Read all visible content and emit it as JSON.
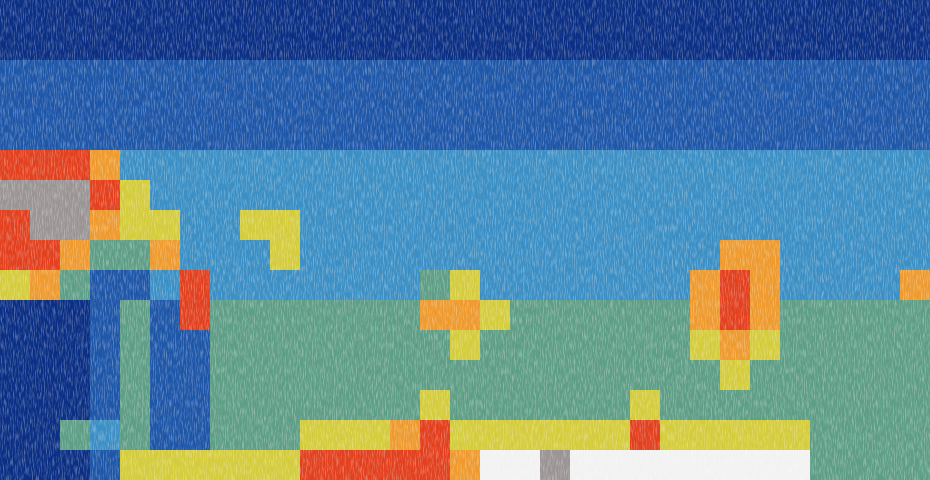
{
  "chart_data": {
    "type": "heatmap",
    "tick_labels": false,
    "color_range": [
      0,
      9
    ],
    "cells": [
      [
        1,
        1,
        1,
        1,
        1,
        1,
        1,
        1,
        1,
        1,
        1,
        1,
        1,
        1,
        1,
        1,
        1,
        1,
        1,
        1,
        1,
        1,
        1,
        1,
        1,
        1,
        1,
        1,
        1,
        1,
        1
      ],
      [
        1,
        1,
        1,
        1,
        1,
        1,
        1,
        1,
        1,
        1,
        1,
        1,
        1,
        1,
        1,
        1,
        1,
        1,
        1,
        1,
        1,
        1,
        1,
        1,
        1,
        1,
        1,
        1,
        1,
        1,
        1
      ],
      [
        2,
        2,
        2,
        2,
        2,
        2,
        2,
        2,
        2,
        2,
        2,
        2,
        2,
        2,
        2,
        2,
        2,
        2,
        2,
        2,
        2,
        2,
        2,
        2,
        2,
        2,
        2,
        2,
        2,
        2,
        2
      ],
      [
        2,
        2,
        2,
        2,
        2,
        2,
        2,
        2,
        2,
        2,
        2,
        2,
        2,
        2,
        2,
        2,
        2,
        2,
        2,
        2,
        2,
        2,
        2,
        2,
        2,
        2,
        2,
        2,
        2,
        2,
        2
      ],
      [
        2,
        2,
        2,
        2,
        2,
        2,
        2,
        2,
        2,
        2,
        2,
        2,
        2,
        2,
        2,
        2,
        2,
        2,
        2,
        2,
        2,
        2,
        2,
        2,
        2,
        2,
        2,
        2,
        2,
        2,
        2
      ],
      [
        7,
        7,
        7,
        6,
        3,
        3,
        3,
        3,
        3,
        3,
        3,
        3,
        3,
        3,
        3,
        3,
        3,
        3,
        3,
        3,
        3,
        3,
        3,
        3,
        3,
        3,
        3,
        3,
        3,
        3,
        3
      ],
      [
        8,
        8,
        8,
        7,
        5,
        3,
        3,
        3,
        3,
        3,
        3,
        3,
        3,
        3,
        3,
        3,
        3,
        3,
        3,
        3,
        3,
        3,
        3,
        3,
        3,
        3,
        3,
        3,
        3,
        3,
        3
      ],
      [
        7,
        8,
        8,
        6,
        5,
        5,
        3,
        3,
        5,
        5,
        3,
        3,
        3,
        3,
        3,
        3,
        3,
        3,
        3,
        3,
        3,
        3,
        3,
        3,
        3,
        3,
        3,
        3,
        3,
        3,
        3
      ],
      [
        7,
        7,
        6,
        4,
        4,
        6,
        3,
        3,
        3,
        5,
        3,
        3,
        3,
        3,
        3,
        3,
        3,
        3,
        3,
        3,
        3,
        3,
        3,
        3,
        6,
        6,
        3,
        3,
        3,
        3,
        3
      ],
      [
        5,
        6,
        4,
        2,
        2,
        3,
        7,
        3,
        3,
        3,
        3,
        3,
        3,
        3,
        4,
        5,
        3,
        3,
        3,
        3,
        3,
        3,
        3,
        6,
        7,
        6,
        3,
        3,
        3,
        3,
        6
      ],
      [
        1,
        1,
        1,
        2,
        4,
        2,
        7,
        4,
        4,
        4,
        4,
        4,
        4,
        4,
        6,
        6,
        5,
        4,
        4,
        4,
        4,
        4,
        4,
        6,
        7,
        6,
        4,
        4,
        4,
        4,
        4
      ],
      [
        1,
        1,
        1,
        2,
        4,
        2,
        2,
        4,
        4,
        4,
        4,
        4,
        4,
        4,
        4,
        5,
        4,
        4,
        4,
        4,
        4,
        4,
        4,
        5,
        6,
        5,
        4,
        4,
        4,
        4,
        4
      ],
      [
        1,
        1,
        1,
        2,
        4,
        2,
        2,
        4,
        4,
        4,
        4,
        4,
        4,
        4,
        4,
        4,
        4,
        4,
        4,
        4,
        4,
        4,
        4,
        4,
        5,
        4,
        4,
        4,
        4,
        4,
        4
      ],
      [
        1,
        1,
        1,
        2,
        4,
        2,
        2,
        4,
        4,
        4,
        4,
        4,
        4,
        4,
        5,
        4,
        4,
        4,
        4,
        4,
        4,
        5,
        4,
        4,
        4,
        4,
        4,
        4,
        4,
        4,
        4
      ],
      [
        1,
        1,
        4,
        3,
        4,
        2,
        2,
        4,
        4,
        4,
        5,
        5,
        5,
        6,
        7,
        5,
        5,
        5,
        5,
        5,
        5,
        7,
        5,
        5,
        5,
        5,
        5,
        4,
        4,
        4,
        4
      ],
      [
        1,
        1,
        1,
        2,
        5,
        5,
        5,
        5,
        5,
        5,
        7,
        7,
        7,
        7,
        7,
        6,
        9,
        9,
        8,
        9,
        9,
        9,
        9,
        9,
        9,
        9,
        9,
        4,
        4,
        4,
        4
      ]
    ]
  }
}
